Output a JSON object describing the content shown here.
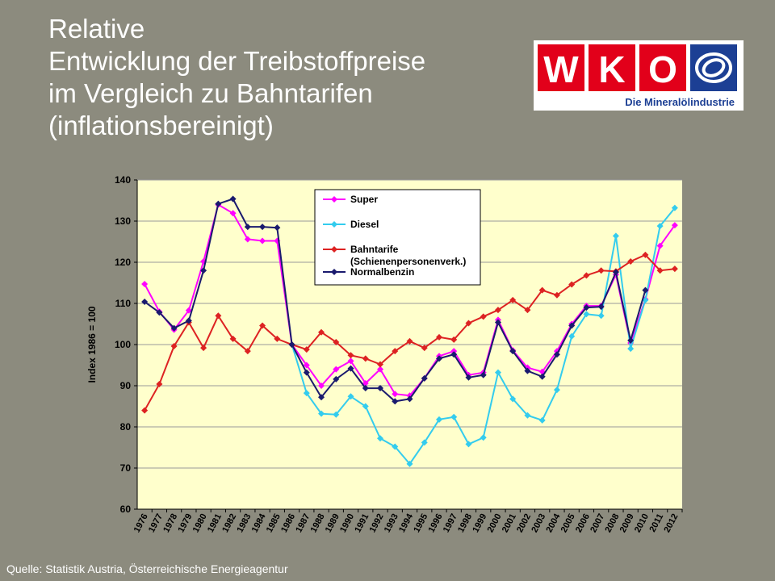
{
  "title_lines": [
    "Relative",
    "Entwicklung der Treibstoffpreise",
    "im Vergleich zu Bahntarifen",
    "(inflationsbereinigt)"
  ],
  "logo": {
    "letters": [
      "W",
      "K",
      "O"
    ],
    "subtitle": "Die Mineralölindustrie",
    "brand_red": "#e2001a",
    "brand_blue": "#1c3f94"
  },
  "source": "Quelle: Statistik Austria, Österreichische Energieagentur",
  "chart_data": {
    "type": "line",
    "ylabel": "Index 1986 = 100",
    "ylim": [
      60,
      140
    ],
    "ytick_step": 10,
    "plot_background": "#ffffcc",
    "x": [
      "1976",
      "1977",
      "1978",
      "1979",
      "1980",
      "1981",
      "1982",
      "1983",
      "1984",
      "1985",
      "1986",
      "1987",
      "1988",
      "1989",
      "1990",
      "1991",
      "1992",
      "1993",
      "1994",
      "1995",
      "1996",
      "1997",
      "1998",
      "1999",
      "2000",
      "2001",
      "2002",
      "2003",
      "2004",
      "2005",
      "2006",
      "2007",
      "2008",
      "2009",
      "2010",
      "2011",
      "2012"
    ],
    "legend_position": "top-center",
    "series": [
      {
        "name": "Super",
        "color": "#ff00ff",
        "values": [
          114.7,
          108,
          103.6,
          108.3,
          120.2,
          134,
          131.9,
          125.6,
          125.2,
          125.2,
          100,
          95,
          90,
          94,
          96,
          90.6,
          94,
          88,
          87.6,
          91.8,
          97.2,
          98.4,
          92.6,
          93.2,
          106,
          98.6,
          94.4,
          93.4,
          98.4,
          105,
          109.4,
          109.4,
          117,
          100.4,
          111,
          124,
          129
        ]
      },
      {
        "name": "Diesel",
        "color": "#33ccee",
        "values": [
          null,
          null,
          null,
          null,
          null,
          null,
          null,
          null,
          null,
          null,
          100,
          88.2,
          83.2,
          83,
          87.4,
          85,
          77.2,
          75.2,
          71,
          76.2,
          81.8,
          82.4,
          75.8,
          77.4,
          93.2,
          86.8,
          82.8,
          81.6,
          89,
          102,
          107.4,
          107,
          126.4,
          99,
          110.8,
          128.8,
          133.2
        ]
      },
      {
        "name": "Bahntarife (Schienenpersonenverk.)",
        "color": "#dd2222",
        "values": [
          84,
          90.4,
          99.6,
          105.4,
          99.2,
          107,
          101.4,
          98.4,
          104.6,
          101.4,
          100,
          98.8,
          103,
          100.6,
          97.4,
          96.6,
          95.2,
          98.4,
          100.8,
          99.2,
          101.8,
          101.2,
          105.2,
          106.8,
          108.4,
          110.8,
          108.4,
          113.2,
          112,
          114.6,
          116.8,
          118,
          117.8,
          120.2,
          121.8,
          118,
          118.4
        ]
      },
      {
        "name": "Normalbenzin",
        "color": "#1a1a6e",
        "values": [
          110.4,
          107.8,
          104,
          105.8,
          118,
          134.2,
          135.4,
          128.6,
          128.6,
          128.4,
          100,
          93.2,
          87.2,
          91.6,
          94.2,
          89.4,
          89.4,
          86.2,
          86.8,
          91.8,
          96.6,
          97.6,
          92,
          92.6,
          105.4,
          98.4,
          93.6,
          92.2,
          97.6,
          104.6,
          109,
          109.2,
          117.6,
          101,
          113.2,
          null,
          null
        ]
      }
    ]
  }
}
